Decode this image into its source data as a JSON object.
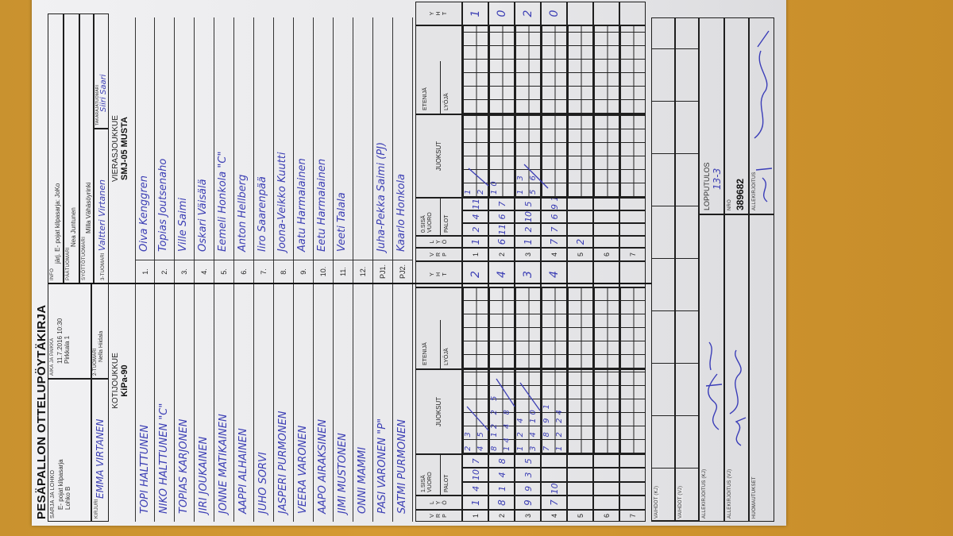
{
  "header": {
    "title": "PESÄPALLON OTTELUPÖYTÄKIRJA",
    "sarja_label": "SARJA JA LOHKO",
    "sarja_line1": "E- pojat kilpasarja",
    "sarja_line2": "Lohko B",
    "aika_label": "AIKA JA PAIKKA",
    "aika_value": "11.7.2016 10:30",
    "paikka_value": "Pirkkala 1",
    "kirjuri_label": "KIRJURI",
    "kirjuri_value": "EMMA VIRTANEN",
    "tuomari2_label": "2-TUOMARI",
    "tuomari2_value": "Nella Hiidala",
    "info_label": "INFO",
    "info_value": "järj. E- pojat kilpasarja: JoKo",
    "paatuomari_label": "PÄÄTUOMARI",
    "paatuomari_value": "Nea Juntunen",
    "syotto_label": "SYÖTTÖTUOMARI",
    "syotto_value": "Milla Vähäsöyrinki",
    "tuomari3_label": "3-TUOMARI",
    "tuomari3_value": "Valtteri Virtanen",
    "takaraja_label": "TAKARAJATUOMARI",
    "takaraja_value": "Siiri Saari"
  },
  "home": {
    "label": "KOTIJOUKKUE",
    "team": "KiPa-90",
    "players": [
      "TOPI HALTTUNEN",
      "NIKO HALTTUNEN \"C\"",
      "TOPIAS KARJONEN",
      "JIRI JOUKAINEN",
      "JONNE MATIKAINEN",
      "AAPPI ALHAINEN",
      "JUHO SORVI",
      "JASPERI PURMONEN",
      "VEERA VARONEN",
      "AAPO AIRAKSINEN",
      "JIMI MUSTONEN",
      "ONNI MAMMI",
      "PASI VARONEN \"P\"",
      "SATMI PURMONEN"
    ]
  },
  "away": {
    "label": "VIERASJOUKKUE",
    "team": "SMJ-05 MUSTA",
    "numbers": [
      "1.",
      "2.",
      "3.",
      "4.",
      "5.",
      "6.",
      "7.",
      "8.",
      "9.",
      "10.",
      "11.",
      "12.",
      "PJ1.",
      "PJ2."
    ],
    "players": [
      "Oiva Kenggren",
      "Topias Joutsenaho",
      "Ville Saimi",
      "Oskari Väisälä",
      "Eemeli Honkola \"C\"",
      "Anton Hellberg",
      "Iiro Saarenpää",
      "Joona-Veikko Kuutti",
      "Aatu Harmalainen",
      "Eetu Harmalainen",
      "Veeti Talala",
      "",
      "Juha-Pekka Saimi (PJ)",
      "Kaarlo Honkola"
    ]
  },
  "grid": {
    "vrp": [
      "V",
      "R",
      "P"
    ],
    "lyo": [
      "L",
      "Y",
      "Ö"
    ],
    "home_vuoro": "1.SISÄ VUORO",
    "away_vuoro": "0.SISÄ VUORO",
    "palot": "PALOT",
    "juoksut": "JUOKSUT",
    "etenija": "ETENIJÄ",
    "lyoja": "LYÖJÄ",
    "yht": [
      "Y",
      "H",
      "T"
    ],
    "home_innings": [
      {
        "v": "1",
        "l": "1",
        "palot": [
          "4",
          "10",
          "7"
        ],
        "runs_top": "2 3",
        "runs_bottom": "4 5",
        "yht": "2"
      },
      {
        "v": "2",
        "l": "8",
        "palot": [
          "1",
          "4",
          "8"
        ],
        "runs_top": "8 12 2 5",
        "runs_bottom": "14 4 8",
        "yht": "4"
      },
      {
        "v": "3",
        "l": "9",
        "palot": [
          "9",
          "3",
          "5"
        ],
        "runs_top": "1 2 4",
        "runs_bottom": "3 4 10",
        "yht": "3"
      },
      {
        "v": "4",
        "l": "7",
        "palot": [
          "10",
          "",
          ""
        ],
        "runs_top": "7 8 9 1",
        "runs_bottom": "1 2 24",
        "yht": "4"
      },
      {
        "v": "5",
        "l": "",
        "palot": [
          "",
          "",
          ""
        ],
        "runs_top": "",
        "runs_bottom": "",
        "yht": ""
      },
      {
        "v": "6",
        "l": "",
        "palot": [
          "",
          "",
          ""
        ],
        "runs_top": "",
        "runs_bottom": "",
        "yht": ""
      },
      {
        "v": "7",
        "l": "",
        "palot": [
          "",
          "",
          ""
        ],
        "runs_top": "",
        "runs_bottom": "",
        "yht": ""
      }
    ],
    "away_innings": [
      {
        "v": "1",
        "l": "1",
        "palot": [
          "2",
          "4",
          "11"
        ],
        "runs_top": "1",
        "runs_bottom": "2",
        "yht": "1"
      },
      {
        "v": "2",
        "l": "6",
        "palot": [
          "11",
          "6",
          "7"
        ],
        "runs_top": "10",
        "runs_bottom": "",
        "yht": "0"
      },
      {
        "v": "3",
        "l": "1",
        "palot": [
          "2",
          "10",
          "5"
        ],
        "runs_top": "1 3",
        "runs_bottom": "5 6",
        "yht": "2"
      },
      {
        "v": "4",
        "l": "7",
        "palot": [
          "7",
          "6",
          "9 1"
        ],
        "runs_top": "",
        "runs_bottom": "",
        "yht": "0"
      },
      {
        "v": "5",
        "l": "2",
        "palot": [
          "",
          "",
          ""
        ],
        "runs_top": "",
        "runs_bottom": "",
        "yht": ""
      },
      {
        "v": "6",
        "l": "",
        "palot": [
          "",
          "",
          ""
        ],
        "runs_top": "",
        "runs_bottom": "",
        "yht": ""
      },
      {
        "v": "7",
        "l": "",
        "palot": [
          "",
          "",
          ""
        ],
        "runs_top": "",
        "runs_bottom": "",
        "yht": ""
      }
    ]
  },
  "footer": {
    "vaihdot_kj": "VAIHDOT (KJ)",
    "vaihdot_vj": "VAIHDOT (VJ)",
    "allekirjoitus_kj": "ALLEKIRJOITUS (KJ)",
    "allekirjoitus_vj": "ALLEKIRJOITUS (VJ)",
    "huomautukset": "HUOMAUTUKSET",
    "lopputulos_label": "LOPPUTULOS",
    "lopputulos_value": "13-3",
    "nro_label": "NRO",
    "nro_value": "389682",
    "allekirjoitus_label": "ALLEKIRJOITUS"
  },
  "colors": {
    "ink": "#3b3eb4",
    "paper": "#ececee",
    "table": "#c9922f"
  }
}
